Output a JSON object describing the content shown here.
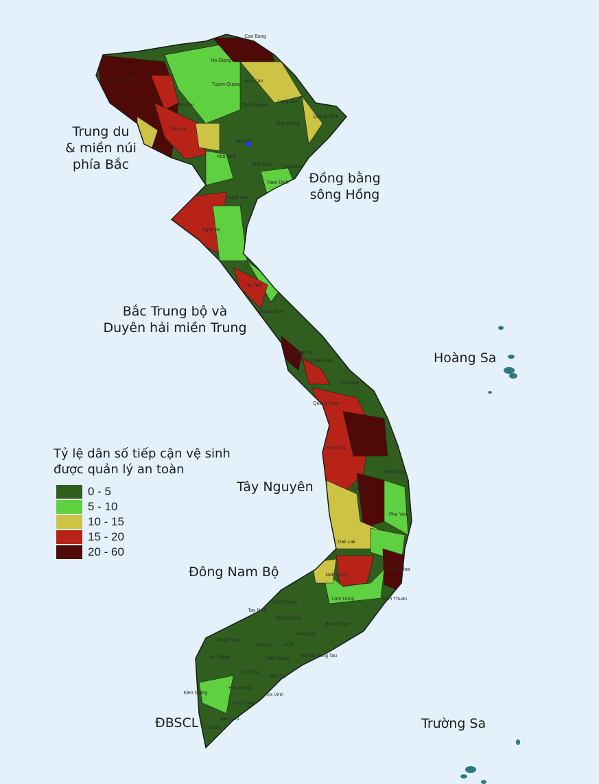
{
  "colors": {
    "background": "#e4f1fb",
    "class_0_5": "#2f5e1f",
    "class_5_10": "#5fd03f",
    "class_10_15": "#cdc445",
    "class_15_20": "#b82318",
    "class_20_60": "#4f0a08",
    "capital_marker": "#1a3cff",
    "islands": "#2d7a80"
  },
  "regions": [
    {
      "label": "Trung du\n& miền núi\nphía Bắc"
    },
    {
      "label": "Đồng bằng\nsông Hồng"
    },
    {
      "label": "Bắc Trung bộ và\nDuyên hải miền Trung"
    },
    {
      "label": "Tây Nguyên"
    },
    {
      "label": "Đông Nam Bộ"
    },
    {
      "label": "ĐBSCL"
    },
    {
      "label": "Hoàng Sa"
    },
    {
      "label": "Trường Sa"
    }
  ],
  "legend": {
    "title": "Tỷ lệ dân số tiếp cận vệ sinh được quản lý an toàn",
    "items": [
      {
        "label": "0 - 5",
        "color": "#2f5e1f"
      },
      {
        "label": "5 - 10",
        "color": "#5fd03f"
      },
      {
        "label": "10 - 15",
        "color": "#cdc445"
      },
      {
        "label": "15 - 20",
        "color": "#b82318"
      },
      {
        "label": "20 - 60",
        "color": "#4f0a08"
      }
    ]
  },
  "provinces": [
    "Cao Bang",
    "Ha Giang",
    "Lai Chau",
    "Bac Kan",
    "Tuyen Quang",
    "Lang Son",
    "Yen Bai",
    "Thai Nguyen",
    "Son La",
    "Bac Giang",
    "Quang Ninh",
    "HA NOI",
    "Hoa Binh",
    "Ninh Binh",
    "Thai Binh",
    "Nam Dinh",
    "Thanh Hoa",
    "Nghe An",
    "Ha Tinh",
    "Quang Binh",
    "Quang Tri",
    "Thua Thien Hue",
    "Da Nang",
    "Quang Nam",
    "Kon Tum",
    "Binh Dinh",
    "Gia Lai",
    "Phu Yen",
    "Dak Lak",
    "Dak Nong",
    "Khanh Hoa",
    "Lam Dong",
    "Ninh Thuan",
    "Binh Phuoc",
    "Tay Ninh",
    "Binh Duong",
    "Dong Nai",
    "Binh Thuan",
    "Ba Ria Vung Tau",
    "HCM",
    "Long An",
    "Dong Thap",
    "An Giang",
    "Tien Giang",
    "Ben Tre",
    "Kien Giang",
    "Can Tho",
    "Hau Giang",
    "Tra Vinh",
    "Soc Trang",
    "Bac Lieu",
    "Ca Mau"
  ]
}
